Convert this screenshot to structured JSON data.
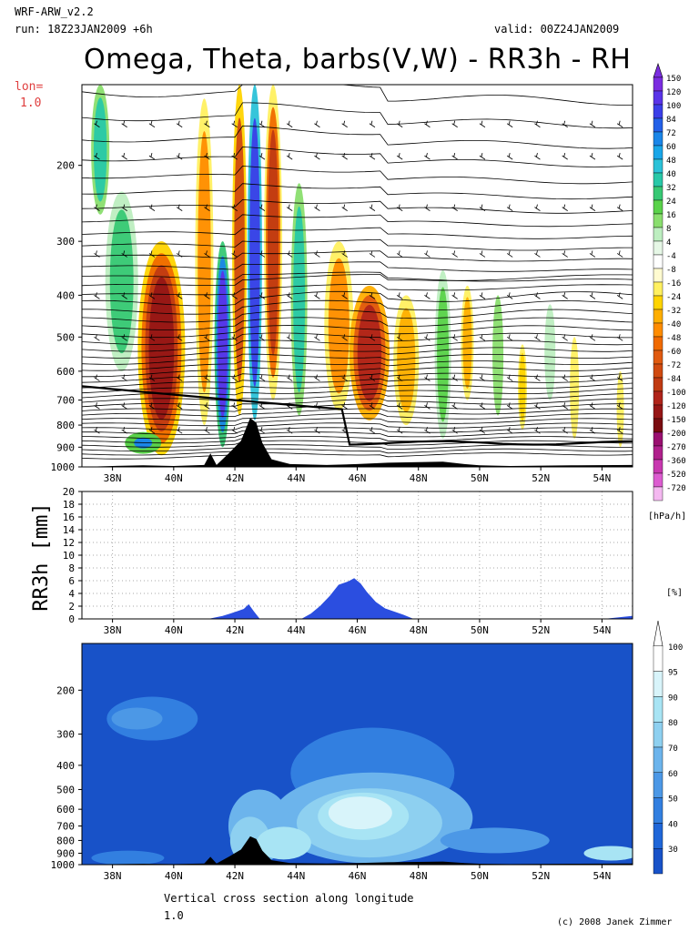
{
  "header": {
    "model": "WRF-ARW_v2.2",
    "run": "run: 18Z23JAN2009 +6h",
    "valid": "valid: 00Z24JAN2009",
    "title": "Omega, Theta, barbs(V,W) - RR3h - RH",
    "lon_label": "lon=",
    "lon_value": "1.0"
  },
  "footer": {
    "caption": "Vertical cross section along longitude",
    "caption_value": "1.0",
    "copyright": "(c) 2008 Janek Zimmer"
  },
  "colors": {
    "terrain": "#000000",
    "precip": "#2b4ee0",
    "theta_lines": "#000000"
  },
  "chart_data": [
    {
      "type": "heatmap",
      "name_in_image": "Omega, Theta, barbs(V,W)",
      "x_ticks": [
        "38N",
        "40N",
        "42N",
        "44N",
        "46N",
        "48N",
        "50N",
        "52N",
        "54N"
      ],
      "x_range": [
        37,
        55
      ],
      "y_ticks": [
        200,
        300,
        400,
        500,
        600,
        700,
        800,
        900,
        1000
      ],
      "y_range_hpa": [
        130,
        1000
      ],
      "y_scale": "log",
      "colorbar_unit": "[hPa/h]",
      "colorbar_levels": [
        "150",
        "120",
        "100",
        "84",
        "72",
        "60",
        "48",
        "40",
        "32",
        "24",
        "16",
        "8",
        "4",
        "-4",
        "-8",
        "-16",
        "-24",
        "-32",
        "-40",
        "-48",
        "-60",
        "-72",
        "-84",
        "-100",
        "-120",
        "-150",
        "-200",
        "-270",
        "-360",
        "-520",
        "-720"
      ],
      "colorbar_colors": [
        "#7b2de0",
        "#5a34e8",
        "#3b3fe8",
        "#2360e8",
        "#1a86e8",
        "#19a6e8",
        "#2bc2d8",
        "#28c8a8",
        "#37c874",
        "#5ad24a",
        "#8ade6e",
        "#bdeec0",
        "#e6f7e6",
        "#ffffff",
        "#fffbd0",
        "#fff060",
        "#ffd400",
        "#ffae00",
        "#ff8c00",
        "#f06a00",
        "#e05a10",
        "#d04a10",
        "#c03a12",
        "#b0241a",
        "#961616",
        "#7a0c10",
        "#9a1070",
        "#b0208c",
        "#c838b0",
        "#dc5cd0",
        "#f4b8f0"
      ],
      "features": [
        {
          "x": 39.6,
          "p_top": 300,
          "p_bot": 900,
          "omega": -120
        },
        {
          "x": 42.5,
          "p_top": 130,
          "p_bot": 750,
          "omega": 84
        },
        {
          "x": 46.5,
          "p_top": 380,
          "p_bot": 760,
          "omega": -100
        },
        {
          "x": 43.5,
          "p_top": 130,
          "p_bot": 300,
          "omega": -16
        }
      ]
    },
    {
      "type": "area",
      "name_in_image": "RR3h [mm]",
      "ylabel": "RR3h [mm]",
      "x_ticks": [
        "38N",
        "40N",
        "42N",
        "44N",
        "46N",
        "48N",
        "50N",
        "52N",
        "54N"
      ],
      "x_range": [
        37,
        55
      ],
      "y_ticks": [
        0,
        2,
        4,
        6,
        8,
        10,
        12,
        14,
        16,
        18,
        20
      ],
      "ylim": [
        0,
        20
      ],
      "x": [
        41.2,
        41.6,
        42.0,
        42.3,
        42.45,
        42.6,
        42.8,
        44.2,
        44.5,
        44.8,
        45.1,
        45.4,
        45.7,
        45.9,
        46.1,
        46.3,
        46.6,
        46.9,
        47.2,
        47.5,
        47.8,
        54.2,
        55
      ],
      "values": [
        0,
        0.4,
        1.0,
        1.5,
        2.2,
        1.2,
        0,
        0,
        0.8,
        2.0,
        3.5,
        5.3,
        5.8,
        6.3,
        5.5,
        4.2,
        2.6,
        1.6,
        1.1,
        0.6,
        0,
        0,
        0.4
      ]
    },
    {
      "type": "heatmap",
      "name_in_image": "RH",
      "x_ticks": [
        "38N",
        "40N",
        "42N",
        "44N",
        "46N",
        "48N",
        "50N",
        "52N",
        "54N"
      ],
      "x_range": [
        37,
        55
      ],
      "y_ticks": [
        200,
        300,
        400,
        500,
        600,
        700,
        800,
        900,
        1000
      ],
      "y_range_hpa": [
        130,
        1000
      ],
      "y_scale": "log",
      "colorbar_unit": "[%]",
      "colorbar_levels": [
        "100",
        "95",
        "90",
        "80",
        "70",
        "60",
        "50",
        "40",
        "30"
      ],
      "colorbar_colors": [
        "#ffffff",
        "#d8f4fa",
        "#a8e4f4",
        "#8ed0f0",
        "#6cb4ec",
        "#4c98e6",
        "#327fe0",
        "#1f66d8",
        "#1852c8"
      ],
      "features": [
        {
          "x": 46.5,
          "p_top": 500,
          "p_bot": 900,
          "rh": 97
        },
        {
          "x": 42.5,
          "p_top": 600,
          "p_bot": 900,
          "rh": 85
        },
        {
          "x": 39.0,
          "p_top": 180,
          "p_bot": 400,
          "rh": 45
        }
      ]
    }
  ]
}
